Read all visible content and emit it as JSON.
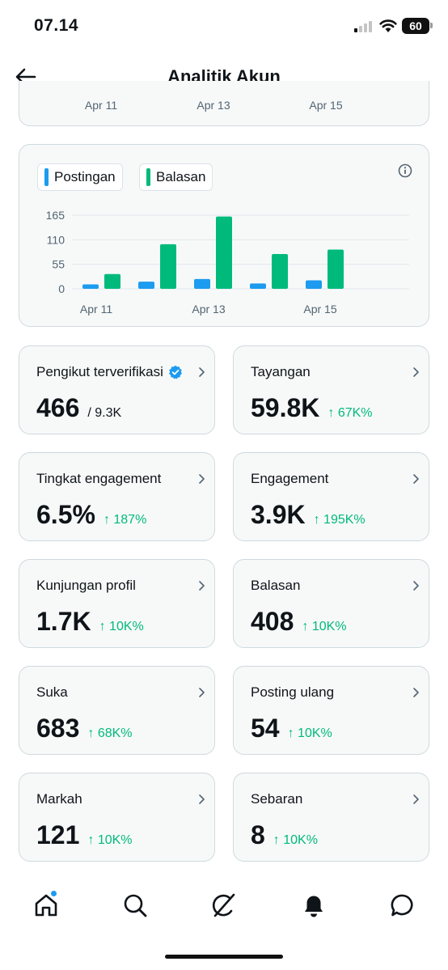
{
  "status_bar": {
    "time": "07.14",
    "battery": "60"
  },
  "header": {
    "title": "Analitik Akun"
  },
  "previous_chart": {
    "x_ticks": [
      "Apr 11",
      "Apr 13",
      "Apr 15"
    ]
  },
  "legend": [
    {
      "label": "Postingan",
      "color": "#1d9bf0"
    },
    {
      "label": "Balasan",
      "color": "#00ba7c"
    }
  ],
  "chart_data": {
    "type": "bar",
    "x_ticks": [
      "Apr 11",
      "Apr 13",
      "Apr 15"
    ],
    "categories": [
      "Apr 11",
      "Apr 12",
      "Apr 13",
      "Apr 14",
      "Apr 15"
    ],
    "series": [
      {
        "name": "Postingan",
        "color": "#1d9bf0",
        "values": [
          10,
          16,
          22,
          12,
          19
        ]
      },
      {
        "name": "Balasan",
        "color": "#00ba7c",
        "values": [
          33,
          100,
          162,
          78,
          88
        ]
      }
    ],
    "y_ticks": [
      0,
      55,
      110,
      165
    ],
    "ylim": [
      0,
      165
    ],
    "grid": true
  },
  "metrics": [
    {
      "label": "Pengikut terverifikasi",
      "value": "466",
      "sub": "/ 9.3K",
      "change": "",
      "verified": true
    },
    {
      "label": "Tayangan",
      "value": "59.8K",
      "sub": "",
      "change": "↑ 67K%"
    },
    {
      "label": "Tingkat engagement",
      "value": "6.5%",
      "sub": "",
      "change": "↑ 187%"
    },
    {
      "label": "Engagement",
      "value": "3.9K",
      "sub": "",
      "change": "↑ 195K%"
    },
    {
      "label": "Kunjungan profil",
      "value": "1.7K",
      "sub": "",
      "change": "↑ 10K%"
    },
    {
      "label": "Balasan",
      "value": "408",
      "sub": "",
      "change": "↑ 10K%"
    },
    {
      "label": "Suka",
      "value": "683",
      "sub": "",
      "change": "↑ 68K%"
    },
    {
      "label": "Posting ulang",
      "value": "54",
      "sub": "",
      "change": "↑ 10K%"
    },
    {
      "label": "Markah",
      "value": "121",
      "sub": "",
      "change": "↑ 10K%"
    },
    {
      "label": "Sebaran",
      "value": "8",
      "sub": "",
      "change": "↑ 10K%"
    }
  ],
  "colors": {
    "accent": "#1d9bf0",
    "positive": "#00ba7c",
    "text": "#0f1419",
    "muted": "#536471",
    "card": "#f7f9f9",
    "border": "#cfd9de"
  },
  "nav_icons": [
    "home-icon",
    "search-icon",
    "grok-icon",
    "notifications-icon",
    "messages-icon"
  ]
}
